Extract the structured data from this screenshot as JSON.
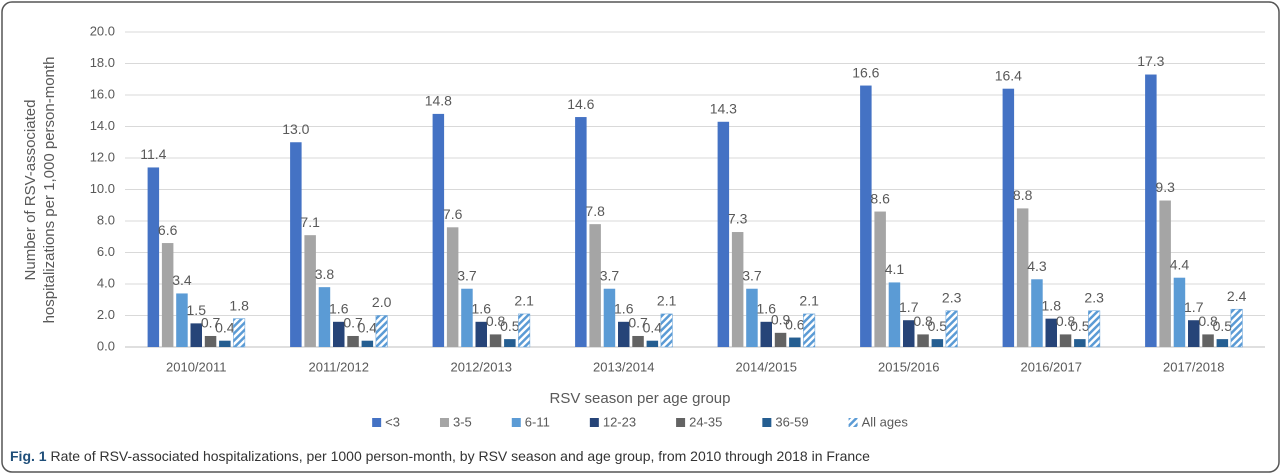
{
  "chart_data": {
    "type": "bar",
    "x_label": "RSV season per age group",
    "y_label": [
      "Number of RSV-associated",
      "hospitalizations per 1,000 person-month"
    ],
    "categories": [
      "2010/2011",
      "2011/2012",
      "2012/2013",
      "2013/2014",
      "2014/2015",
      "2015/2016",
      "2016/2017",
      "2017/2018"
    ],
    "series": [
      {
        "name": "<3",
        "color": "#4472c4",
        "values": [
          11.4,
          13.0,
          14.8,
          14.6,
          14.3,
          16.6,
          16.4,
          17.3
        ],
        "value_labels": [
          "11.4",
          "13.0",
          "14.8",
          "14.6",
          "14.3",
          "16.6",
          "16.4",
          "17.3"
        ]
      },
      {
        "name": "3-5",
        "color": "#a5a5a5",
        "values": [
          6.6,
          7.1,
          7.6,
          7.8,
          7.3,
          8.6,
          8.8,
          9.3
        ],
        "value_labels": [
          "6.6",
          "7.1",
          "7.6",
          "7.8",
          "7.3",
          "8.6",
          "8.8",
          "9.3"
        ]
      },
      {
        "name": "6-11",
        "color": "#5b9bd5",
        "values": [
          3.4,
          3.8,
          3.7,
          3.7,
          3.7,
          4.1,
          4.3,
          4.4
        ],
        "value_labels": [
          "3.4",
          "3.8",
          "3.7",
          "3.7",
          "3.7",
          "4.1",
          "4.3",
          "4.4"
        ]
      },
      {
        "name": "12-23",
        "color": "#264478",
        "values": [
          1.5,
          1.6,
          1.6,
          1.6,
          1.6,
          1.7,
          1.8,
          1.7
        ],
        "value_labels": [
          "1.5",
          "1.6",
          "1.6",
          "1.6",
          "1.6",
          "1.7",
          "1.8",
          "1.7"
        ]
      },
      {
        "name": "24-35",
        "color": "#636363",
        "values": [
          0.7,
          0.7,
          0.8,
          0.7,
          0.9,
          0.8,
          0.8,
          0.8
        ],
        "value_labels": [
          "0.7",
          "0.7",
          "0.8",
          "0.7",
          "0.9",
          "0.8",
          "0.8",
          "0.8"
        ]
      },
      {
        "name": "36-59",
        "color": "#255e91",
        "values": [
          0.4,
          0.4,
          0.5,
          0.4,
          0.6,
          0.5,
          0.5,
          0.5
        ],
        "value_labels": [
          "0.4",
          "0.4",
          "0.5",
          "0.4",
          "0.6",
          "0.5",
          "0.5",
          "0.5"
        ]
      },
      {
        "name": "All ages",
        "color": "#5b9bd5",
        "pattern": "hatch",
        "values": [
          1.8,
          2.0,
          2.1,
          2.1,
          2.1,
          2.3,
          2.3,
          2.4
        ],
        "value_labels": [
          "1.8",
          "2.0",
          "2.1",
          "2.1",
          "2.1",
          "2.3",
          "2.3",
          "2.4"
        ]
      }
    ],
    "ylim": [
      0,
      20
    ],
    "yticks": [
      {
        "value": 0,
        "label": "0.0"
      },
      {
        "value": 2,
        "label": "2.0"
      },
      {
        "value": 4,
        "label": "4.0"
      },
      {
        "value": 6,
        "label": "6.0"
      },
      {
        "value": 8,
        "label": "8.0"
      },
      {
        "value": 10,
        "label": "10.0"
      },
      {
        "value": 12,
        "label": "12.0"
      },
      {
        "value": 14,
        "label": "14.0"
      },
      {
        "value": 16,
        "label": "16.0"
      },
      {
        "value": 18,
        "label": "18.0"
      },
      {
        "value": 20,
        "label": "20.0"
      }
    ],
    "grid": true,
    "legend": "bottom"
  },
  "caption": {
    "label": "Fig. 1",
    "text": " Rate of RSV-associated hospitalizations, per 1000 person-month, by RSV season and age group, from 2010 through 2018 in France"
  }
}
